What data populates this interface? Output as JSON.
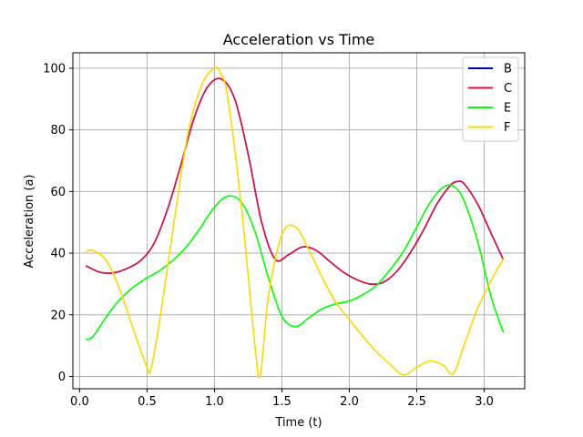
{
  "chart_data": {
    "type": "line",
    "title": "Acceleration vs Time",
    "xlabel": "Time (t)",
    "ylabel": "Acceleration (a)",
    "xlim": [
      -0.05,
      3.3
    ],
    "ylim": [
      -4,
      105
    ],
    "xticks": [
      0.0,
      0.5,
      1.0,
      1.5,
      2.0,
      2.5,
      3.0
    ],
    "xtick_labels": [
      "0.0",
      "0.5",
      "1.0",
      "1.5",
      "2.0",
      "2.5",
      "3.0"
    ],
    "yticks": [
      0,
      20,
      40,
      60,
      80,
      100
    ],
    "ytick_labels": [
      "0",
      "20",
      "40",
      "60",
      "80",
      "100"
    ],
    "grid": true,
    "legend_position": "top-right",
    "series": [
      {
        "name": "B",
        "color": "#0000cc",
        "x": [
          0.05,
          0.15,
          0.25,
          0.35,
          0.45,
          0.55,
          0.65,
          0.75,
          0.85,
          0.95,
          1.05,
          1.15,
          1.25,
          1.35,
          1.45,
          1.55,
          1.65,
          1.75,
          1.85,
          1.95,
          2.05,
          2.15,
          2.25,
          2.35,
          2.45,
          2.55,
          2.65,
          2.75,
          2.8,
          2.85,
          2.95,
          3.05,
          3.14
        ],
        "y": [
          35.8,
          33.8,
          33.6,
          35.0,
          37.5,
          43.0,
          54.0,
          68.5,
          84.0,
          94.0,
          96.5,
          90.0,
          72.0,
          50.0,
          38.0,
          39.5,
          42.0,
          41.0,
          37.5,
          34.0,
          31.5,
          30.0,
          30.5,
          34.0,
          40.0,
          47.5,
          56.0,
          62.0,
          63.2,
          62.5,
          56.0,
          46.5,
          38.0
        ]
      },
      {
        "name": "C",
        "color": "#dc143c",
        "x": [
          0.05,
          0.15,
          0.25,
          0.35,
          0.45,
          0.55,
          0.65,
          0.75,
          0.85,
          0.95,
          1.05,
          1.15,
          1.25,
          1.35,
          1.45,
          1.55,
          1.65,
          1.75,
          1.85,
          1.95,
          2.05,
          2.15,
          2.25,
          2.35,
          2.45,
          2.55,
          2.65,
          2.75,
          2.8,
          2.85,
          2.95,
          3.05,
          3.14
        ],
        "y": [
          35.8,
          33.8,
          33.6,
          35.0,
          37.5,
          43.0,
          54.0,
          68.5,
          84.0,
          94.0,
          96.5,
          90.0,
          72.0,
          50.0,
          38.0,
          39.5,
          42.0,
          41.0,
          37.5,
          34.0,
          31.5,
          30.0,
          30.5,
          34.0,
          40.0,
          47.5,
          56.0,
          62.0,
          63.2,
          62.5,
          56.0,
          46.5,
          38.0
        ]
      },
      {
        "name": "E",
        "color": "#00ff00",
        "x": [
          0.05,
          0.1,
          0.2,
          0.3,
          0.4,
          0.5,
          0.6,
          0.7,
          0.8,
          0.9,
          1.0,
          1.1,
          1.2,
          1.3,
          1.4,
          1.5,
          1.6,
          1.7,
          1.8,
          1.9,
          2.0,
          2.1,
          2.2,
          2.3,
          2.4,
          2.5,
          2.6,
          2.7,
          2.78,
          2.85,
          2.95,
          3.05,
          3.14
        ],
        "y": [
          12.0,
          13.0,
          19.5,
          25.0,
          29.0,
          32.0,
          34.5,
          38.0,
          42.5,
          48.5,
          55.0,
          58.5,
          56.5,
          47.0,
          32.0,
          19.5,
          16.2,
          19.0,
          22.0,
          23.5,
          24.5,
          26.5,
          29.5,
          34.5,
          40.5,
          48.5,
          56.5,
          61.5,
          61.5,
          57.0,
          44.0,
          26.0,
          14.5
        ]
      },
      {
        "name": "F",
        "color": "#ffd700",
        "x": [
          0.05,
          0.1,
          0.2,
          0.3,
          0.4,
          0.5,
          0.53,
          0.6,
          0.7,
          0.8,
          0.9,
          1.0,
          1.05,
          1.1,
          1.2,
          1.3,
          1.34,
          1.4,
          1.5,
          1.6,
          1.7,
          1.8,
          1.9,
          2.0,
          2.1,
          2.2,
          2.3,
          2.4,
          2.5,
          2.6,
          2.7,
          2.77,
          2.85,
          2.95,
          3.05,
          3.14
        ],
        "y": [
          40.5,
          40.8,
          37.5,
          28.0,
          15.0,
          3.0,
          2.5,
          20.0,
          50.0,
          78.0,
          94.0,
          100.0,
          98.0,
          90.0,
          55.0,
          10.0,
          0.5,
          26.0,
          46.0,
          48.5,
          41.0,
          32.0,
          24.0,
          18.5,
          13.0,
          8.0,
          4.0,
          0.5,
          3.0,
          5.0,
          3.5,
          0.8,
          10.0,
          22.0,
          31.0,
          38.0
        ]
      }
    ]
  }
}
